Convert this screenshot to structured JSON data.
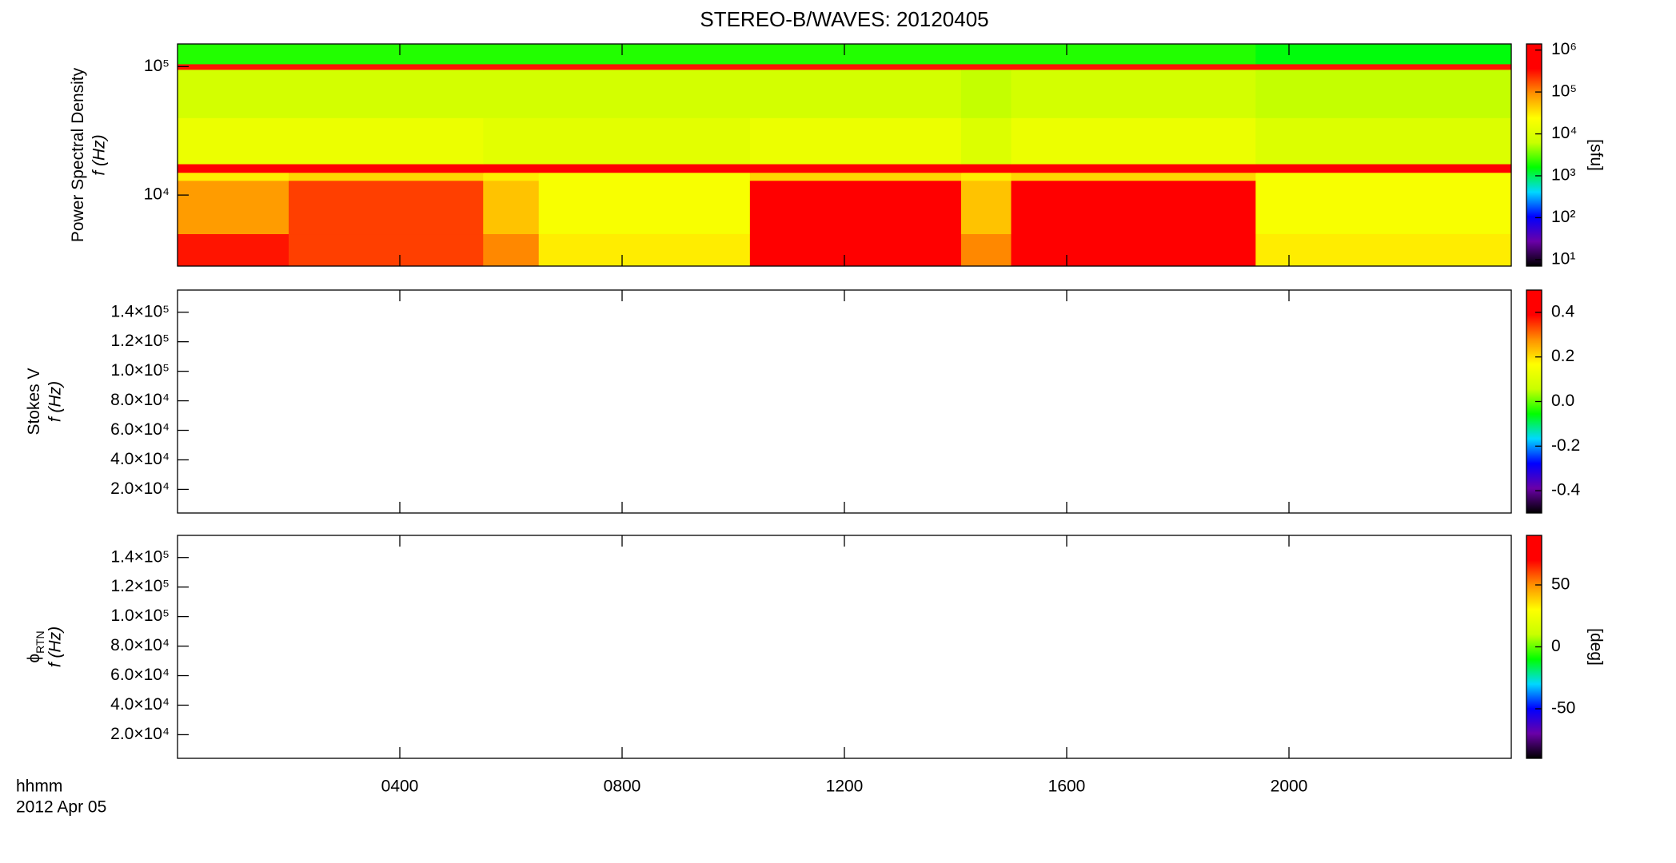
{
  "chart_data": [
    {
      "type": "heatmap",
      "title": "STEREO-B/WAVES: 20120405",
      "ylabel": "Power Spectral Density",
      "yunit": "f (Hz)",
      "xlim": [
        0,
        24
      ],
      "ylim": [
        2800,
        150000
      ],
      "ylog": true,
      "yticks": [
        {
          "value": 10000,
          "label": "10⁴"
        },
        {
          "value": 100000,
          "label": "10⁵"
        }
      ],
      "time_bins": [
        0,
        2,
        5.5,
        6.5,
        10.3,
        14.1,
        15,
        19.4,
        24
      ],
      "freq_bins": [
        2800,
        5000,
        13000,
        15000,
        17500,
        40000,
        95000,
        105000,
        150000
      ],
      "values": [
        [
          300000,
          200000,
          100000,
          30000,
          1000000,
          100000,
          1000000,
          30000
        ],
        [
          80000,
          200000,
          50000,
          20000,
          1000000,
          50000,
          1000000,
          20000
        ],
        [
          30000,
          40000,
          30000,
          20000,
          40000,
          30000,
          40000,
          20000
        ],
        [
          800000,
          800000,
          800000,
          800000,
          800000,
          800000,
          800000,
          800000
        ],
        [
          15000,
          15000,
          12000,
          12000,
          15000,
          10000,
          15000,
          10000
        ],
        [
          8000,
          8000,
          8000,
          8000,
          8000,
          6000,
          8000,
          6000
        ],
        [
          300000,
          300000,
          300000,
          300000,
          300000,
          300000,
          300000,
          300000
        ],
        [
          2000,
          2000,
          2000,
          2000,
          2000,
          2000,
          2000,
          1500
        ]
      ],
      "clim": [
        7,
        1400000
      ],
      "clog": true,
      "clabel": "[sfu]",
      "cticks": [
        {
          "value": 10,
          "label": "10¹"
        },
        {
          "value": 100,
          "label": "10²"
        },
        {
          "value": 1000,
          "label": "10³"
        },
        {
          "value": 10000,
          "label": "10⁴"
        },
        {
          "value": 100000,
          "label": "10⁵"
        },
        {
          "value": 1000000,
          "label": "10⁶"
        }
      ],
      "colormap": [
        "#000000",
        "#6a00a8",
        "#0000ff",
        "#00d8ff",
        "#00ff00",
        "#c8ff00",
        "#ffff00",
        "#ff9000",
        "#ff0000",
        "#ff0000"
      ]
    },
    {
      "type": "heatmap",
      "ylabel": "Stokes V",
      "yunit": "f (Hz)",
      "xlim": [
        0,
        24
      ],
      "ylim": [
        4000,
        155000
      ],
      "yticks": [
        {
          "value": 20000,
          "label": "2.0×10⁴"
        },
        {
          "value": 40000,
          "label": "4.0×10⁴"
        },
        {
          "value": 60000,
          "label": "6.0×10⁴"
        },
        {
          "value": 80000,
          "label": "8.0×10⁴"
        },
        {
          "value": 100000,
          "label": "1.0×10⁵"
        },
        {
          "value": 120000,
          "label": "1.2×10⁵"
        },
        {
          "value": 140000,
          "label": "1.4×10⁵"
        }
      ],
      "clim": [
        -0.5,
        0.5
      ],
      "cticks": [
        -0.4,
        -0.2,
        {
          "value": 0,
          "label": "0.0"
        },
        0.2,
        0.4
      ],
      "colormap": [
        "#000000",
        "#6a00a8",
        "#0000ff",
        "#00d8ff",
        "#00ff00",
        "#c8ff00",
        "#ffff00",
        "#ff9000",
        "#ff0000",
        "#ff0000"
      ]
    },
    {
      "type": "heatmap",
      "ylabel": "ϕ",
      "ylabel_sub": "RTN",
      "yunit": "f (Hz)",
      "xlim": [
        0,
        24
      ],
      "ylim": [
        4000,
        155000
      ],
      "yticks": [
        {
          "value": 20000,
          "label": "2.0×10⁴"
        },
        {
          "value": 40000,
          "label": "4.0×10⁴"
        },
        {
          "value": 60000,
          "label": "6.0×10⁴"
        },
        {
          "value": 80000,
          "label": "8.0×10⁴"
        },
        {
          "value": 100000,
          "label": "1.0×10⁵"
        },
        {
          "value": 120000,
          "label": "1.2×10⁵"
        },
        {
          "value": 140000,
          "label": "1.4×10⁵"
        }
      ],
      "clim": [
        -90,
        90
      ],
      "clabel": "[deg]",
      "cticks": [
        -50,
        0,
        50
      ],
      "colormap": [
        "#000000",
        "#6a00a8",
        "#0000ff",
        "#00d8ff",
        "#00ff00",
        "#c8ff00",
        "#ffff00",
        "#ff9000",
        "#ff0000",
        "#ff0000"
      ],
      "xlabel": "hhmm",
      "date": "2012 Apr 05",
      "xticks": [
        {
          "value": 4,
          "label": "0400"
        },
        {
          "value": 8,
          "label": "0800"
        },
        {
          "value": 12,
          "label": "1200"
        },
        {
          "value": 16,
          "label": "1600"
        },
        {
          "value": 20,
          "label": "2000"
        }
      ]
    }
  ]
}
